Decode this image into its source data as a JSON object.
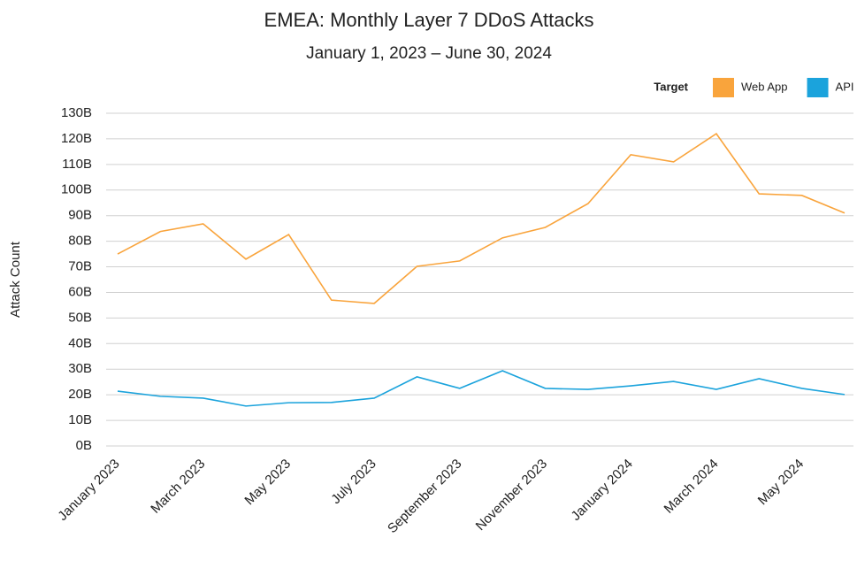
{
  "chart_data": {
    "type": "line",
    "title": "EMEA: Monthly Layer 7 DDoS Attacks",
    "subtitle": "January 1, 2023 – June 30, 2024",
    "y_label": "Attack Count",
    "legend_title": "Target",
    "legend_position": "top-right",
    "grid": true,
    "categories": [
      "January 2023",
      null,
      "March 2023",
      null,
      "May 2023",
      null,
      "July 2023",
      null,
      "September 2023",
      null,
      "November 2023",
      null,
      "January 2024",
      null,
      "March 2024",
      null,
      "May 2024",
      null
    ],
    "series": [
      {
        "name": "Web App",
        "color": "#f9a43c",
        "values": [
          75,
          83.8,
          86.8,
          73,
          82.6,
          57,
          55.7,
          70.2,
          72.3,
          81.3,
          85.4,
          94.7,
          113.8,
          111,
          122,
          98.5,
          97.9,
          91
        ]
      },
      {
        "name": "API",
        "color": "#1ba3dc",
        "values": [
          21.4,
          19.4,
          18.7,
          15.6,
          16.9,
          17,
          18.7,
          27,
          22.5,
          29.4,
          22.5,
          22.1,
          23.5,
          25.2,
          22.1,
          26.3,
          22.5,
          20.1
        ]
      }
    ],
    "ylim": [
      0,
      130
    ],
    "yticks": [
      {
        "value": 0,
        "label": "0B"
      },
      {
        "value": 10,
        "label": "10B"
      },
      {
        "value": 20,
        "label": "20B"
      },
      {
        "value": 30,
        "label": "30B"
      },
      {
        "value": 40,
        "label": "40B"
      },
      {
        "value": 50,
        "label": "50B"
      },
      {
        "value": 60,
        "label": "60B"
      },
      {
        "value": 70,
        "label": "70B"
      },
      {
        "value": 80,
        "label": "80B"
      },
      {
        "value": 90,
        "label": "90B"
      },
      {
        "value": 100,
        "label": "100B"
      },
      {
        "value": 110,
        "label": "110B"
      },
      {
        "value": 120,
        "label": "120B"
      },
      {
        "value": 130,
        "label": "130B"
      }
    ]
  }
}
